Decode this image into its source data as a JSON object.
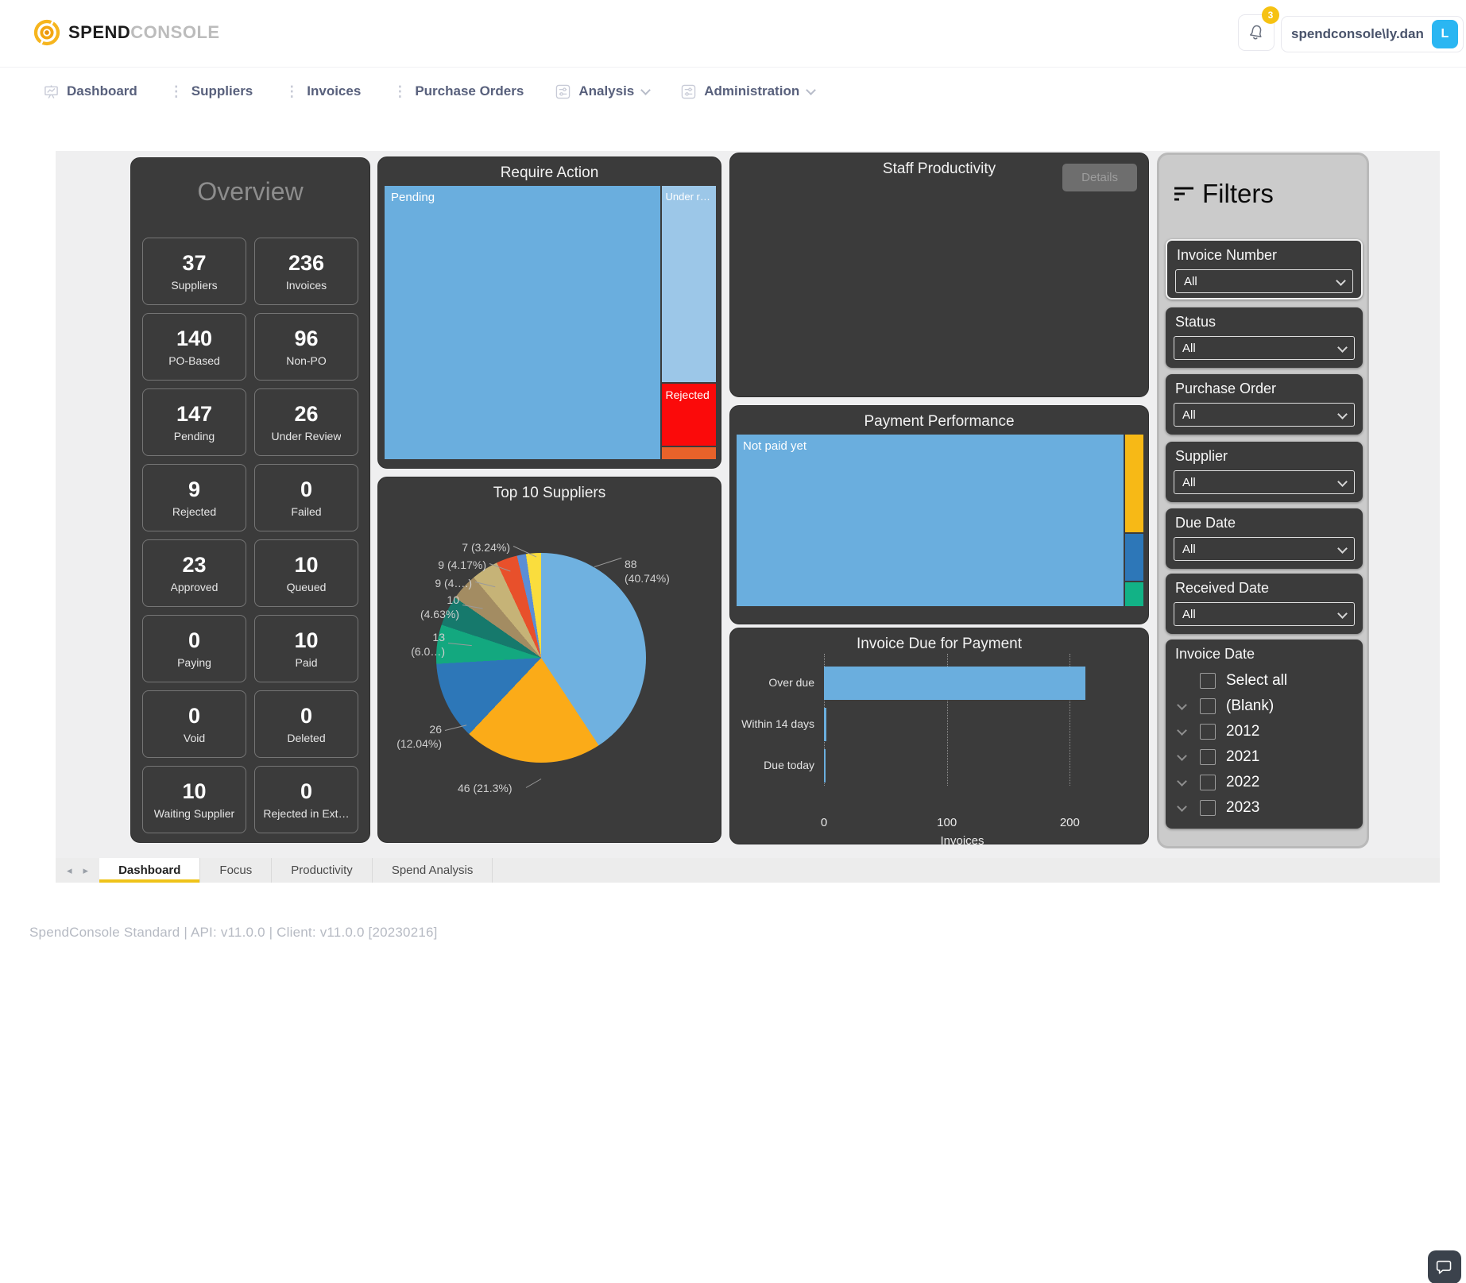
{
  "header": {
    "brand": {
      "bold": "SPEND",
      "light": "CONSOLE"
    },
    "notification_count": "3",
    "username": "spendconsole\\ly.dan",
    "avatar_initial": "L"
  },
  "nav": {
    "items": [
      {
        "label": "Dashboard"
      },
      {
        "label": "Suppliers"
      },
      {
        "label": "Invoices"
      },
      {
        "label": "Purchase Orders"
      },
      {
        "label": "Analysis"
      },
      {
        "label": "Administration"
      }
    ]
  },
  "overview": {
    "title": "Overview",
    "tiles": [
      {
        "value": "37",
        "label": "Suppliers"
      },
      {
        "value": "236",
        "label": "Invoices"
      },
      {
        "value": "140",
        "label": "PO-Based"
      },
      {
        "value": "96",
        "label": "Non-PO"
      },
      {
        "value": "147",
        "label": "Pending"
      },
      {
        "value": "26",
        "label": "Under Review"
      },
      {
        "value": "9",
        "label": "Rejected"
      },
      {
        "value": "0",
        "label": "Failed"
      },
      {
        "value": "23",
        "label": "Approved"
      },
      {
        "value": "10",
        "label": "Queued"
      },
      {
        "value": "0",
        "label": "Paying"
      },
      {
        "value": "10",
        "label": "Paid"
      },
      {
        "value": "0",
        "label": "Void"
      },
      {
        "value": "0",
        "label": "Deleted"
      },
      {
        "value": "10",
        "label": "Waiting Supplier"
      },
      {
        "value": "0",
        "label": "Rejected in Ext…"
      }
    ]
  },
  "panels": {
    "require_action": {
      "title": "Require Action"
    },
    "staff_productivity": {
      "title": "Staff Productivity",
      "details_button": "Details"
    },
    "payment_performance": {
      "title": "Payment Performance"
    },
    "top_suppliers": {
      "title": "Top 10 Suppliers",
      "labels": [
        {
          "l1": "88",
          "l2": "(40.74%)"
        },
        {
          "l1": "46 (21.3%)",
          "l2": ""
        },
        {
          "l1": "26",
          "l2": "(12.04%)"
        },
        {
          "l1": "13",
          "l2": "(6.0…)"
        },
        {
          "l1": "10",
          "l2": "(4.63%)"
        },
        {
          "l1": "9 (4….)",
          "l2": ""
        },
        {
          "l1": "9 (4.17%)",
          "l2": ""
        },
        {
          "l1": "7 (3.24%)",
          "l2": ""
        }
      ]
    },
    "invoice_due": {
      "title": "Invoice Due for Payment"
    }
  },
  "chart_data": [
    {
      "id": "top-suppliers-pie",
      "type": "pie",
      "title": "Top 10 Suppliers",
      "values": [
        88,
        46,
        26,
        13,
        10,
        9,
        9,
        7,
        3,
        5
      ],
      "percent_labels": [
        "88 (40.74%)",
        "46 (21.3%)",
        "26 (12.04%)",
        "13 (6.0…)",
        "10 (4.63%)",
        "9 (4….)",
        "9 (4.17%)",
        "7 (3.24%)",
        "",
        ""
      ],
      "colors": [
        "#6fb1e0",
        "#fbab18",
        "#2d77b8",
        "#13a87f",
        "#16796c",
        "#a38c62",
        "#c6b377",
        "#e8502b",
        "#5b8ed6",
        "#fadd3d"
      ],
      "start_angle_deg": 0,
      "direction": "clockwise"
    },
    {
      "id": "invoice-due-bar",
      "type": "bar",
      "orientation": "horizontal",
      "title": "Invoice Due for Payment",
      "categories": [
        "Over due",
        "Within 14 days",
        "Due today"
      ],
      "values": [
        213,
        2,
        1
      ],
      "xticks": [
        0,
        100,
        200
      ],
      "xmax": 225,
      "xlabel": "Invoices",
      "bar_color": "#6aaede",
      "grid": "dotted-vertical"
    },
    {
      "id": "require-action-treemap",
      "type": "treemap",
      "title": "Require Action",
      "segments": [
        {
          "label": "Pending",
          "value": 147,
          "color": "#6aaede"
        },
        {
          "label": "Under r…",
          "value": 26,
          "color": "#9cc7e8"
        },
        {
          "label": "Rejected",
          "value": 9,
          "color": "#fb0a0a"
        },
        {
          "label": "",
          "value": 2,
          "color": "#e8622a"
        }
      ]
    },
    {
      "id": "payment-performance-treemap",
      "type": "treemap",
      "title": "Payment Performance",
      "segments": [
        {
          "label": "Not paid yet",
          "value": 213,
          "color": "#6aaede"
        },
        {
          "label": "",
          "value": 13,
          "color": "#f7b916"
        },
        {
          "label": "",
          "value": 6,
          "color": "#2d77b8"
        },
        {
          "label": "",
          "value": 3,
          "color": "#12b286"
        }
      ]
    }
  ],
  "filters": {
    "title": "Filters",
    "groups": [
      {
        "label": "Invoice Number",
        "value": "All"
      },
      {
        "label": "Status",
        "value": "All"
      },
      {
        "label": "Purchase Order",
        "value": "All"
      },
      {
        "label": "Supplier",
        "value": "All"
      },
      {
        "label": "Due Date",
        "value": "All"
      },
      {
        "label": "Received Date",
        "value": "All"
      }
    ],
    "invoice_date": {
      "label": "Invoice Date",
      "options": [
        {
          "label": "Select all"
        },
        {
          "label": "(Blank)"
        },
        {
          "label": "2012"
        },
        {
          "label": "2021"
        },
        {
          "label": "2022"
        },
        {
          "label": "2023"
        }
      ]
    }
  },
  "tabs": {
    "items": [
      {
        "label": "Dashboard",
        "active": true
      },
      {
        "label": "Focus",
        "active": false
      },
      {
        "label": "Productivity",
        "active": false
      },
      {
        "label": "Spend Analysis",
        "active": false
      }
    ]
  },
  "footer": {
    "text": "SpendConsole Standard | API: v11.0.0 | Client: v11.0.0 [20230216]"
  }
}
